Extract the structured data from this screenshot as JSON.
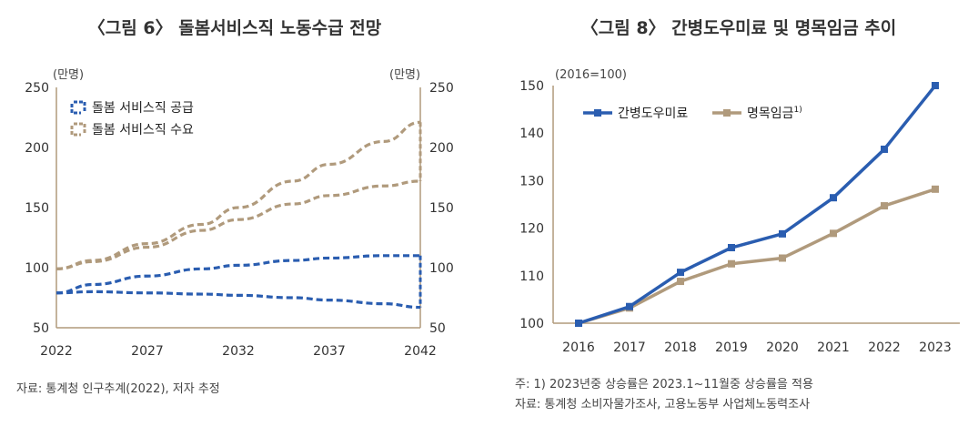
{
  "chart_data": [
    {
      "type": "line",
      "title": "〈그림 6〉 돌봄서비스직 노동수급 전망",
      "ylabel_left": "(만명)",
      "ylabel_right": "(만명)",
      "ylim": [
        50,
        250
      ],
      "yticks": [
        50,
        100,
        150,
        200,
        250
      ],
      "xlim": [
        2022,
        2042
      ],
      "xticks": [
        2022,
        2027,
        2032,
        2037,
        2042
      ],
      "line_style": "dashed",
      "fan_colors": {
        "supply": "#2a5db0",
        "demand": "#b09a7c"
      },
      "series": [
        {
          "name": "돌봄 서비스직 공급",
          "color": "#2a5db0",
          "band": "upper",
          "x": [
            2022,
            2024,
            2027,
            2030,
            2032,
            2035,
            2037,
            2040,
            2042
          ],
          "y": [
            79,
            86,
            93,
            99,
            102,
            106,
            108,
            110,
            110
          ]
        },
        {
          "name": "돌봄 서비스직 공급",
          "color": "#2a5db0",
          "band": "lower",
          "x": [
            2022,
            2024,
            2027,
            2030,
            2032,
            2035,
            2037,
            2040,
            2042
          ],
          "y": [
            79,
            80,
            79,
            78,
            77,
            75,
            73,
            70,
            67
          ]
        },
        {
          "name": "돌봄 서비스직 수요",
          "color": "#b09a7c",
          "band": "upper",
          "x": [
            2022,
            2024,
            2027,
            2030,
            2032,
            2035,
            2037,
            2040,
            2042
          ],
          "y": [
            99,
            106,
            120,
            136,
            150,
            172,
            186,
            205,
            221
          ]
        },
        {
          "name": "돌봄 서비스직 수요",
          "color": "#b09a7c",
          "band": "lower",
          "x": [
            2022,
            2024,
            2027,
            2030,
            2032,
            2035,
            2037,
            2040,
            2042
          ],
          "y": [
            99,
            105,
            117,
            131,
            140,
            153,
            160,
            168,
            172
          ]
        }
      ],
      "legend": [
        "돌봄 서비스직 공급",
        "돌봄 서비스직 수요"
      ],
      "source": "자료: 통계청 인구추계(2022), 저자 추정"
    },
    {
      "type": "line",
      "title": "〈그림 8〉 간병도우미료 및 명목임금 추이",
      "ylabel": "(2016=100)",
      "ylim": [
        100,
        150
      ],
      "yticks": [
        100,
        110,
        120,
        130,
        140,
        150
      ],
      "categories": [
        "2016",
        "2017",
        "2018",
        "2019",
        "2020",
        "2021",
        "2022",
        "2023"
      ],
      "series": [
        {
          "name": "간병도우미료",
          "color": "#2a5db0",
          "values": [
            100,
            103.5,
            110.7,
            115.9,
            118.8,
            126.4,
            136.6,
            150
          ]
        },
        {
          "name": "명목임금",
          "superscript": "1)",
          "color": "#b09a7c",
          "values": [
            100,
            103.2,
            108.8,
            112.5,
            113.7,
            118.9,
            124.7,
            128.2
          ]
        }
      ],
      "notes": [
        "주: 1) 2023년중 상승률은 2023.1~11월중 상승률을 적용",
        "자료: 통계청 소비자물가조사, 고용노동부 사업체노동력조사"
      ]
    }
  ]
}
